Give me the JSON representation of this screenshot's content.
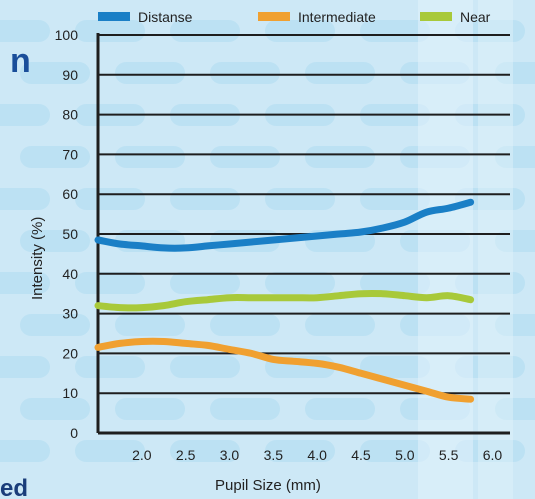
{
  "chart_data": {
    "type": "line",
    "xlabel": "Pupil Size (mm)",
    "ylabel": "Intensity (%)",
    "xlim": [
      1.5,
      6.2
    ],
    "ylim": [
      0,
      100
    ],
    "xticks": [
      "2.0",
      "2.5",
      "3.0",
      "3.5",
      "4.0",
      "4.5",
      "5.0",
      "5.5",
      "6.0"
    ],
    "yticks": [
      "0",
      "10",
      "20",
      "30",
      "40",
      "50",
      "60",
      "70",
      "80",
      "90",
      "100"
    ],
    "grid": "horizontal",
    "legend": "top",
    "series": [
      {
        "name": "Distanse",
        "color": "#1a7fc6",
        "x": [
          1.5,
          1.75,
          2.0,
          2.25,
          2.5,
          2.75,
          3.0,
          3.25,
          3.5,
          3.75,
          4.0,
          4.25,
          4.5,
          4.75,
          5.0,
          5.25,
          5.5,
          5.75
        ],
        "y": [
          48.5,
          47.5,
          47,
          46.5,
          46.5,
          47,
          47.5,
          48,
          48.5,
          49,
          49.5,
          50,
          50.5,
          51.5,
          53,
          55.5,
          56.5,
          58
        ]
      },
      {
        "name": "Intermediate",
        "color": "#f0a030",
        "x": [
          1.5,
          1.75,
          2.0,
          2.25,
          2.5,
          2.75,
          3.0,
          3.25,
          3.5,
          3.75,
          4.0,
          4.25,
          4.5,
          4.75,
          5.0,
          5.25,
          5.5,
          5.75
        ],
        "y": [
          21.5,
          22.5,
          23,
          23,
          22.5,
          22,
          21,
          20,
          18.5,
          18,
          17.5,
          16.5,
          15,
          13.5,
          12,
          10.5,
          9,
          8.5
        ]
      },
      {
        "name": "Near",
        "color": "#a8c93a",
        "x": [
          1.5,
          1.75,
          2.0,
          2.25,
          2.5,
          2.75,
          3.0,
          3.25,
          3.5,
          3.75,
          4.0,
          4.25,
          4.5,
          4.75,
          5.0,
          5.25,
          5.5,
          5.75
        ],
        "y": [
          32,
          31.5,
          31.5,
          32,
          33,
          33.5,
          34,
          34,
          34,
          34,
          34,
          34.5,
          35,
          35,
          34.5,
          34,
          34.5,
          33.5
        ]
      }
    ]
  },
  "background": {
    "edge_text_left": "n",
    "edge_text_bottom": "ed"
  }
}
